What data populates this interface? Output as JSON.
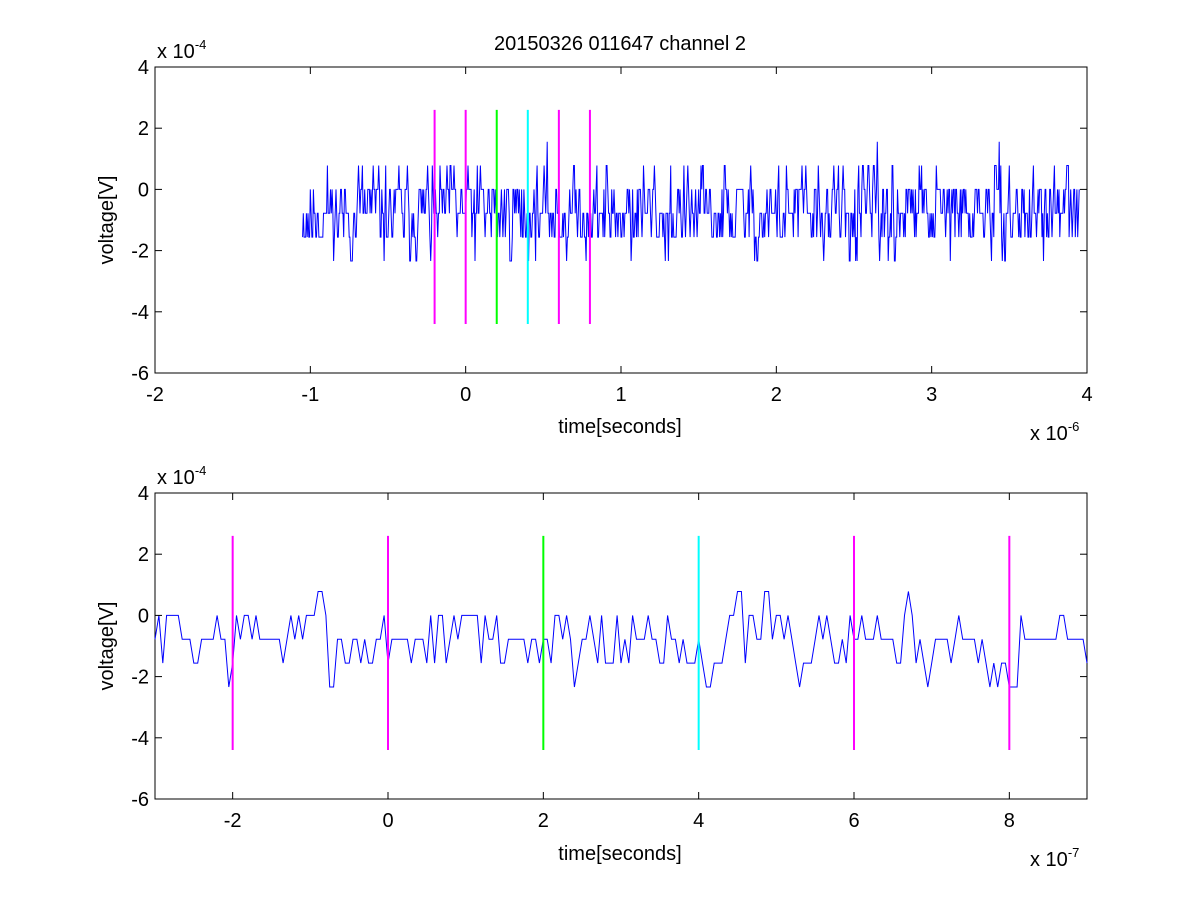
{
  "figure": {
    "title": "20150326 011647 channel 2"
  },
  "chart_data": [
    {
      "type": "line",
      "title": "20150326 011647 channel 2",
      "xlabel": "time[seconds]",
      "ylabel": "voltage[V]",
      "x_exponent_label": "x 10",
      "x_exponent": "-6",
      "y_exponent_label": "x 10",
      "y_exponent": "-4",
      "xlim": [
        -2,
        4
      ],
      "ylim": [
        -6,
        4
      ],
      "xticks": [
        "-2",
        "-1",
        "0",
        "1",
        "2",
        "3",
        "4"
      ],
      "yticks": [
        "-6",
        "-4",
        "-2",
        "0",
        "2",
        "4"
      ],
      "grid": false,
      "series": [
        {
          "color": "#0000ff",
          "x_range": [
            -1.05,
            3.95
          ],
          "step": 0.005,
          "quantum": 0.78,
          "seed": 11,
          "spread": 1.0
        }
      ],
      "markers": [
        {
          "x": -0.2,
          "color": "#ff00ff"
        },
        {
          "x": 0.0,
          "color": "#ff00ff"
        },
        {
          "x": 0.2,
          "color": "#00ff00"
        },
        {
          "x": 0.4,
          "color": "#00ffff"
        },
        {
          "x": 0.6,
          "color": "#ff00ff"
        },
        {
          "x": 0.8,
          "color": "#ff00ff"
        }
      ],
      "marker_range": [
        -4.4,
        2.6
      ]
    },
    {
      "type": "line",
      "title": "",
      "xlabel": "time[seconds]",
      "ylabel": "voltage[V]",
      "x_exponent_label": "x 10",
      "x_exponent": "-7",
      "y_exponent_label": "x 10",
      "y_exponent": "-4",
      "xlim": [
        -3,
        9
      ],
      "ylim": [
        -6,
        4
      ],
      "xticks": [
        "-2",
        "0",
        "2",
        "4",
        "6",
        "8"
      ],
      "yticks": [
        "-6",
        "-4",
        "-2",
        "0",
        "2",
        "4"
      ],
      "grid": false,
      "series": [
        {
          "color": "#0000ff",
          "x_range": [
            -3,
            9
          ],
          "step": 0.05,
          "quantum": 0.78,
          "seed": 7,
          "spread": 1.0
        }
      ],
      "markers": [
        {
          "x": -2,
          "color": "#ff00ff"
        },
        {
          "x": 0,
          "color": "#ff00ff"
        },
        {
          "x": 2,
          "color": "#00ff00"
        },
        {
          "x": 4,
          "color": "#00ffff"
        },
        {
          "x": 6,
          "color": "#ff00ff"
        },
        {
          "x": 8,
          "color": "#ff00ff"
        }
      ],
      "marker_range": [
        -4.4,
        2.6
      ]
    }
  ]
}
